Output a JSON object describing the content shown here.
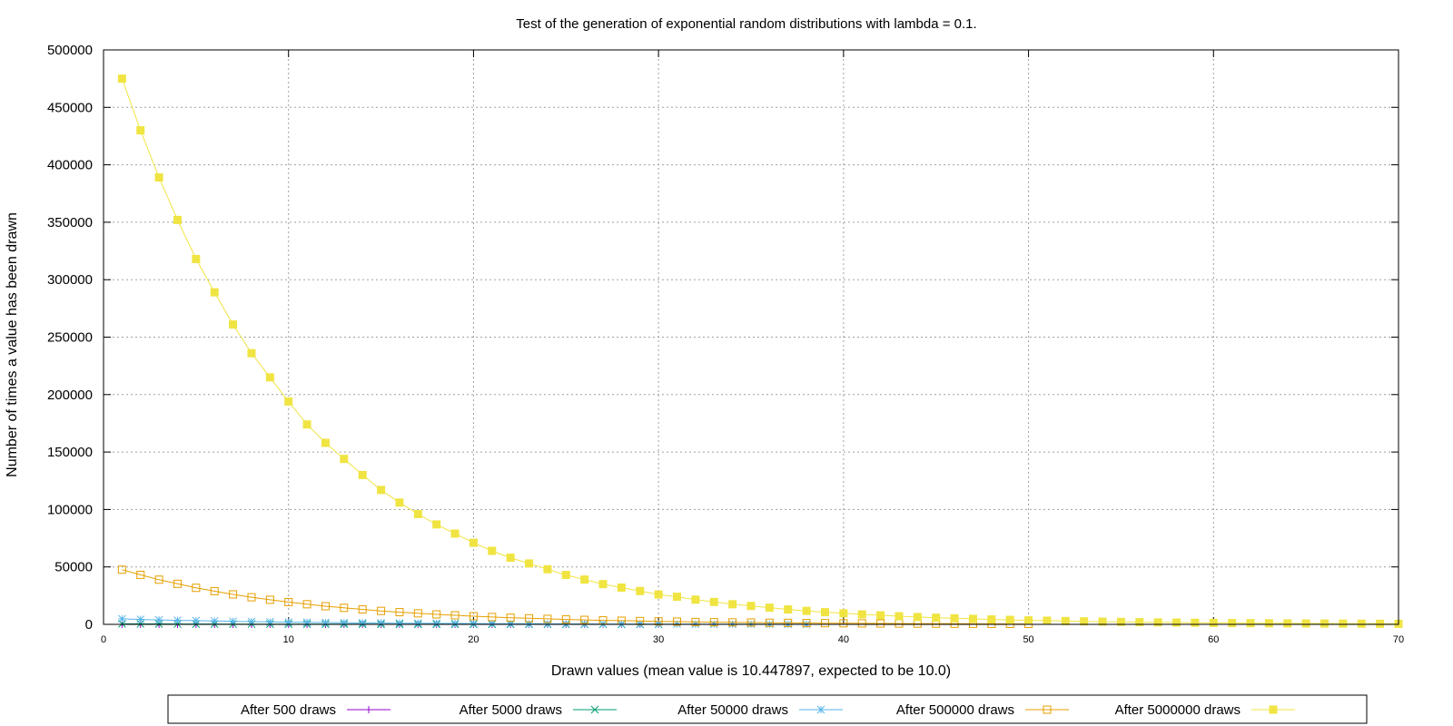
{
  "chart_data": {
    "type": "line",
    "title": "Test of the generation of exponential random distributions with lambda = 0.1.",
    "xlabel": "Drawn values (mean value is 10.447897, expected to be 10.0)",
    "ylabel": "Number of times a value has been drawn",
    "xlim": [
      0,
      70
    ],
    "ylim": [
      0,
      500000
    ],
    "x_ticks": [
      "0",
      "10",
      "20",
      "30",
      "40",
      "50",
      "60",
      "70"
    ],
    "y_ticks": [
      "0",
      "50000",
      "100000",
      "150000",
      "200000",
      "250000",
      "300000",
      "350000",
      "400000",
      "450000",
      "500000"
    ],
    "grid": true,
    "legend_position": "bottom",
    "series": [
      {
        "name": "After 500 draws",
        "color": "#9400d3",
        "marker": "plus",
        "x": [
          1,
          2,
          3,
          4,
          5,
          6,
          7,
          8,
          9,
          10,
          11,
          12,
          13,
          14,
          15,
          16,
          17,
          18,
          19,
          20,
          21,
          22,
          23,
          24,
          25,
          26,
          27,
          28,
          29,
          30
        ],
        "y": [
          48,
          43,
          39,
          35,
          32,
          29,
          26,
          24,
          21,
          19,
          17,
          16,
          14,
          13,
          12,
          11,
          10,
          9,
          8,
          7,
          6,
          6,
          5,
          5,
          4,
          4,
          3,
          3,
          3,
          3
        ]
      },
      {
        "name": "After 5000 draws",
        "color": "#009e73",
        "marker": "cross",
        "x": [
          1,
          2,
          3,
          4,
          5,
          6,
          7,
          8,
          9,
          10,
          11,
          12,
          13,
          14,
          15,
          16,
          17,
          18,
          19,
          20,
          21,
          22,
          23,
          24,
          25,
          26,
          27,
          28,
          29,
          30
        ],
        "y": [
          476,
          431,
          389,
          353,
          318,
          289,
          261,
          236,
          214,
          194,
          175,
          158,
          144,
          130,
          117,
          106,
          96,
          87,
          79,
          71,
          64,
          58,
          52,
          47,
          43,
          39,
          35,
          32,
          29,
          26
        ]
      },
      {
        "name": "After 50000 draws",
        "color": "#56b4e9",
        "marker": "star",
        "x": [
          1,
          2,
          3,
          4,
          5,
          6,
          7,
          8,
          9,
          10,
          11,
          12,
          13,
          14,
          15,
          16,
          17,
          18,
          19,
          20,
          21,
          22,
          23,
          24,
          25,
          26,
          27,
          28,
          29,
          30,
          31,
          32,
          33,
          34,
          35,
          36,
          37,
          38
        ],
        "y": [
          4800,
          4300,
          3900,
          3500,
          3200,
          2900,
          2600,
          2400,
          2100,
          1900,
          1750,
          1580,
          1440,
          1300,
          1170,
          1060,
          960,
          870,
          790,
          710,
          640,
          580,
          520,
          470,
          430,
          390,
          350,
          320,
          290,
          260,
          240,
          210,
          190,
          170,
          160,
          140,
          130,
          120
        ]
      },
      {
        "name": "After 500000 draws",
        "color": "#e69f00",
        "marker": "square-open",
        "x": [
          1,
          2,
          3,
          4,
          5,
          6,
          7,
          8,
          9,
          10,
          11,
          12,
          13,
          14,
          15,
          16,
          17,
          18,
          19,
          20,
          21,
          22,
          23,
          24,
          25,
          26,
          27,
          28,
          29,
          30,
          31,
          32,
          33,
          34,
          35,
          36,
          37,
          38,
          39,
          40,
          41,
          42,
          43,
          44,
          45,
          46,
          47,
          48,
          49,
          50
        ],
        "y": [
          47600,
          43100,
          38900,
          35300,
          31800,
          28900,
          26100,
          23600,
          21400,
          19400,
          17500,
          15800,
          14400,
          13000,
          11700,
          10600,
          9600,
          8700,
          7900,
          7100,
          6400,
          5800,
          5300,
          4800,
          4300,
          3900,
          3500,
          3200,
          2900,
          2600,
          2400,
          2100,
          1900,
          1750,
          1600,
          1400,
          1300,
          1150,
          1050,
          950,
          860,
          780,
          700,
          640,
          580,
          520,
          470,
          430,
          390,
          350
        ]
      },
      {
        "name": "After 5000000 draws",
        "color": "#f0e442",
        "marker": "square-filled",
        "x": [
          1,
          2,
          3,
          4,
          5,
          6,
          7,
          8,
          9,
          10,
          11,
          12,
          13,
          14,
          15,
          16,
          17,
          18,
          19,
          20,
          21,
          22,
          23,
          24,
          25,
          26,
          27,
          28,
          29,
          30,
          31,
          32,
          33,
          34,
          35,
          36,
          37,
          38,
          39,
          40,
          41,
          42,
          43,
          44,
          45,
          46,
          47,
          48,
          49,
          50,
          51,
          52,
          53,
          54,
          55,
          56,
          57,
          58,
          59,
          60,
          61,
          62,
          63,
          64,
          65,
          66,
          67,
          68,
          69,
          70
        ],
        "y": [
          475000,
          430000,
          389000,
          352000,
          318000,
          289000,
          261000,
          236000,
          215000,
          194000,
          174000,
          158000,
          144000,
          130000,
          117000,
          106000,
          96000,
          87000,
          79000,
          71000,
          64000,
          58000,
          53000,
          48000,
          43000,
          39000,
          35000,
          32000,
          29000,
          26000,
          24000,
          21500,
          19500,
          17500,
          16000,
          14500,
          13000,
          11700,
          10600,
          9600,
          8700,
          7900,
          7100,
          6400,
          5800,
          5300,
          4800,
          4300,
          3900,
          3500,
          3200,
          2900,
          2600,
          2300,
          2100,
          1900,
          1700,
          1550,
          1400,
          1270,
          1150,
          1040,
          940,
          850,
          770,
          700,
          630,
          570,
          520,
          470
        ]
      }
    ]
  }
}
